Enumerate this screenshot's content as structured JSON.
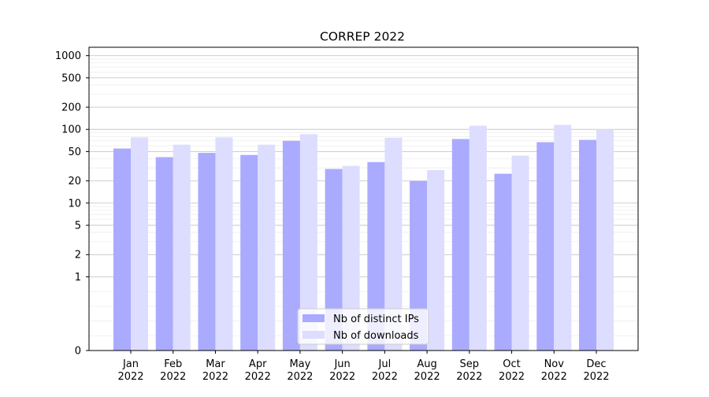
{
  "chart_data": {
    "type": "bar",
    "title": "CORREP 2022",
    "xlabel": "",
    "ylabel": "",
    "y_scale": "symlog",
    "ylim": [
      0,
      1300
    ],
    "y_ticks": [
      0,
      1,
      2,
      5,
      10,
      20,
      50,
      100,
      200,
      500,
      1000
    ],
    "y_tick_labels": [
      "0",
      "1",
      "2",
      "5",
      "10",
      "20",
      "50",
      "100",
      "200",
      "500",
      "1000"
    ],
    "grid": "horizontal major and minor lines",
    "legend_position": "lower center",
    "categories": [
      "Jan\n2022",
      "Feb\n2022",
      "Mar\n2022",
      "Apr\n2022",
      "May\n2022",
      "Jun\n2022",
      "Jul\n2022",
      "Aug\n2022",
      "Sep\n2022",
      "Oct\n2022",
      "Nov\n2022",
      "Dec\n2022"
    ],
    "series": [
      {
        "name": "Nb of distinct IPs",
        "color": "#aaaaff",
        "values": [
          55,
          42,
          48,
          45,
          70,
          29,
          36,
          20,
          74,
          25,
          67,
          72
        ]
      },
      {
        "name": "Nb of downloads",
        "color": "#ddddff",
        "values": [
          78,
          62,
          78,
          62,
          86,
          32,
          77,
          28,
          112,
          44,
          115,
          100
        ]
      }
    ]
  }
}
